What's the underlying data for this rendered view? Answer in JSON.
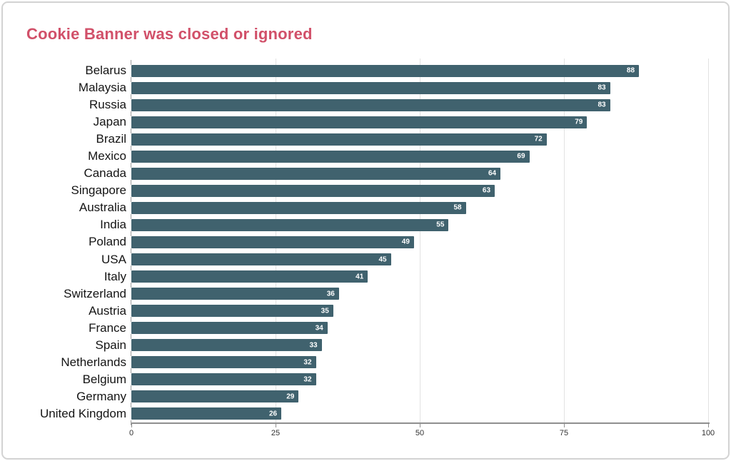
{
  "chart_data": {
    "type": "bar",
    "orientation": "horizontal",
    "title": "Cookie Banner was closed or ignored",
    "title_color": "#d15069",
    "bar_color": "#40626e",
    "value_label_color": "#ffffff",
    "categories": [
      "Belarus",
      "Malaysia",
      "Russia",
      "Japan",
      "Brazil",
      "Mexico",
      "Canada",
      "Singapore",
      "Australia",
      "India",
      "Poland",
      "USA",
      "Italy",
      "Switzerland",
      "Austria",
      "France",
      "Spain",
      "Netherlands",
      "Belgium",
      "Germany",
      "United Kingdom"
    ],
    "values": [
      88,
      83,
      83,
      79,
      72,
      69,
      64,
      63,
      58,
      55,
      49,
      45,
      41,
      36,
      35,
      34,
      33,
      32,
      32,
      29,
      26
    ],
    "xlabel": "",
    "ylabel": "",
    "xlim": [
      0,
      100
    ],
    "x_ticks": [
      0,
      25,
      50,
      75,
      100
    ],
    "grid": "vertical",
    "legend": "none"
  }
}
